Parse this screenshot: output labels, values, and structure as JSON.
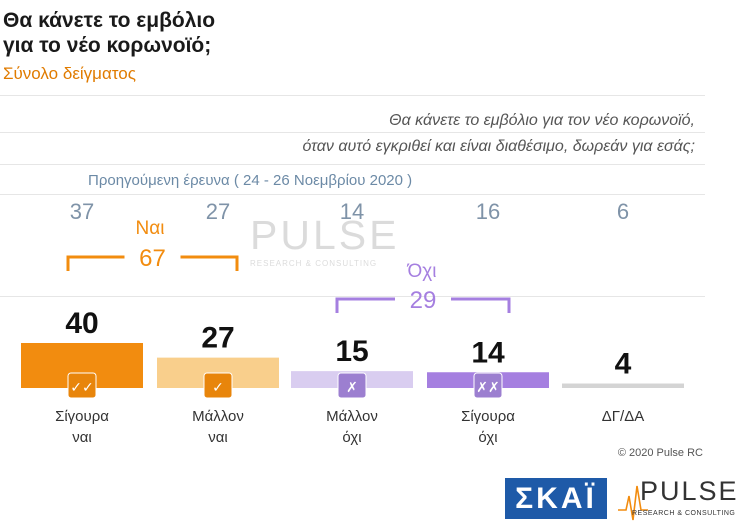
{
  "header": {
    "title_line1": "Θα κάνετε το εμβόλιο",
    "title_line2": "για το νέο κορωνοϊό;",
    "subtitle": "Σύνολο δείγματος",
    "question_line1": "Θα κάνετε το εμβόλιο για τον νέο κορωνοϊό,",
    "question_line2": "όταν αυτό εγκριθεί και είναι διαθέσιμο, δωρεάν για εσάς;",
    "previous_label": "Προηγούμενη έρευνα  ( 24 - 26  Νοεμβρίου  2020 )"
  },
  "chart_data": {
    "type": "bar",
    "categories": [
      "Σίγουρα ναι",
      "Μάλλον ναι",
      "Μάλλον όχι",
      "Σίγουρα όχι",
      "ΔΓ/ΔΑ"
    ],
    "category_lines": [
      [
        "Σίγουρα",
        "ναι"
      ],
      [
        "Μάλλον",
        "ναι"
      ],
      [
        "Μάλλον",
        "όχι"
      ],
      [
        "Σίγουρα",
        "όχι"
      ],
      [
        "ΔΓ/ΔΑ",
        ""
      ]
    ],
    "series": [
      {
        "name": "",
        "values": [
          40,
          27,
          15,
          14,
          4
        ]
      },
      {
        "name": "Προηγούμενη έρευνα  ( 24 - 26  Νοεμβρίου  2020 )",
        "values": [
          37,
          27,
          14,
          16,
          6
        ]
      }
    ],
    "colors": [
      "#f28c0f",
      "#f9cf8c",
      "#d9cdf0",
      "#a57fe0",
      "#d4d4d4"
    ],
    "check_marks": [
      "✓✓",
      "✓",
      "✗",
      "✗✗",
      ""
    ],
    "groups": [
      {
        "label": "Ναι",
        "total": "67",
        "color": "#f28c0f"
      },
      {
        "label": "Όχι",
        "total": "29",
        "color": "#a57fe0"
      }
    ],
    "ylim": [
      0,
      40
    ]
  },
  "footer": {
    "copyright": "© 2020 Pulse RC",
    "skai_logo": "ΣΚΑΪ",
    "pulse_name": "PULSE",
    "pulse_tag": "RESEARCH & CONSULTING"
  }
}
